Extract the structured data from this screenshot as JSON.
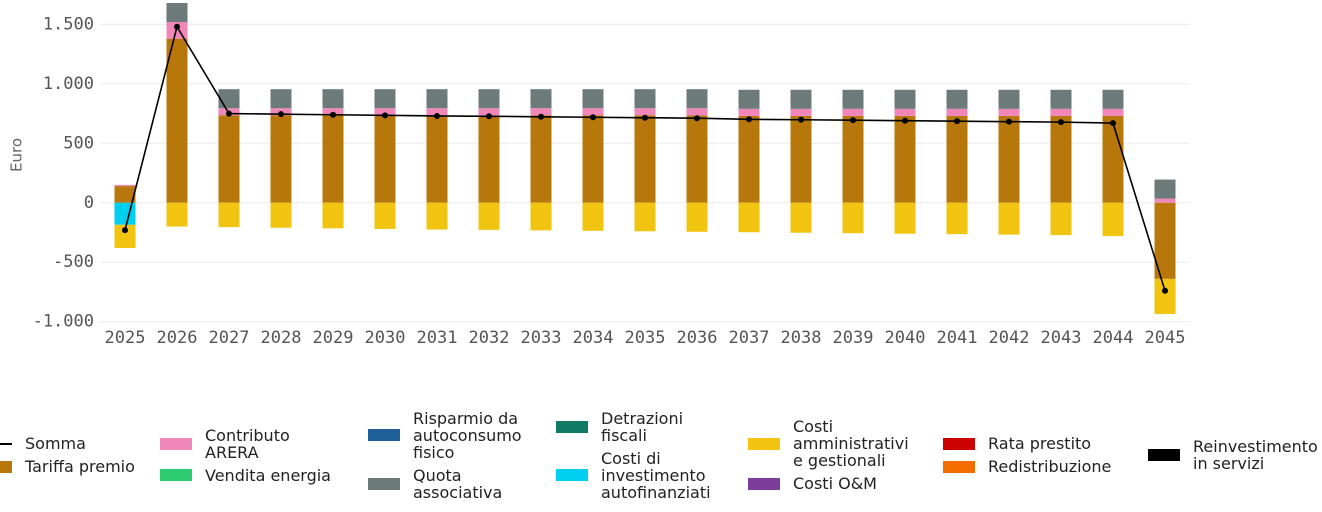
{
  "chart_data": {
    "type": "bar",
    "stacked": true,
    "ylabel": "Euro",
    "categories": [
      "2025",
      "2026",
      "2027",
      "2028",
      "2029",
      "2030",
      "2031",
      "2032",
      "2033",
      "2034",
      "2035",
      "2036",
      "2037",
      "2038",
      "2039",
      "2040",
      "2041",
      "2042",
      "2043",
      "2044",
      "2045"
    ],
    "ylim": [
      -1070,
      1705
    ],
    "yticks": [
      {
        "value": -1000,
        "label": "-1.000"
      },
      -500,
      0,
      500,
      {
        "value": 1000,
        "label": "1.000"
      },
      {
        "value": 1500,
        "label": "1.500"
      }
    ],
    "grid": true,
    "series": [
      {
        "name": "Somma",
        "type": "line",
        "color": "#000000",
        "values": [
          -230,
          1480,
          750,
          745,
          740,
          735,
          730,
          727,
          723,
          719,
          715,
          711,
          702,
          698,
          694,
          690,
          686,
          682,
          678,
          670,
          -740
        ]
      },
      {
        "name": "Tariffa premio",
        "color": "#b8770b",
        "values": [
          140,
          1380,
          735,
          735,
          735,
          735,
          735,
          735,
          735,
          735,
          735,
          735,
          730,
          730,
          730,
          730,
          730,
          730,
          730,
          730,
          -640
        ]
      },
      {
        "name": "Contributo ARERA",
        "color": "#f187b8",
        "values": [
          10,
          140,
          60,
          60,
          60,
          60,
          60,
          60,
          60,
          60,
          60,
          60,
          60,
          60,
          60,
          60,
          60,
          60,
          60,
          60,
          35
        ]
      },
      {
        "name": "Vendita energia",
        "color": "#2ecc71",
        "values": [
          0,
          0,
          0,
          0,
          0,
          0,
          0,
          0,
          0,
          0,
          0,
          0,
          0,
          0,
          0,
          0,
          0,
          0,
          0,
          0,
          0
        ]
      },
      {
        "name": "Risparmio da autoconsumo fisico",
        "color": "#1f5f99",
        "values": [
          0,
          0,
          0,
          0,
          0,
          0,
          0,
          0,
          0,
          0,
          0,
          0,
          0,
          0,
          0,
          0,
          0,
          0,
          0,
          0,
          0
        ]
      },
      {
        "name": "Quota associativa",
        "color": "#6c7a7a",
        "values": [
          0,
          160,
          160,
          160,
          160,
          160,
          160,
          160,
          160,
          160,
          160,
          160,
          160,
          160,
          160,
          160,
          160,
          160,
          160,
          160,
          160
        ]
      },
      {
        "name": "Detrazioni fiscali",
        "color": "#117a65",
        "values": [
          0,
          0,
          0,
          0,
          0,
          0,
          0,
          0,
          0,
          0,
          0,
          0,
          0,
          0,
          0,
          0,
          0,
          0,
          0,
          0,
          0
        ]
      },
      {
        "name": "Costi di investimento autofinanziati",
        "color": "#00cfef",
        "values": [
          -185,
          0,
          0,
          0,
          0,
          0,
          0,
          0,
          0,
          0,
          0,
          0,
          0,
          0,
          0,
          0,
          0,
          0,
          0,
          0,
          0
        ]
      },
      {
        "name": "Costi amministrativi e gestionali",
        "color": "#f1c40f",
        "values": [
          -195,
          -200,
          -205,
          -210,
          -215,
          -220,
          -225,
          -228,
          -232,
          -236,
          -240,
          -244,
          -248,
          -252,
          -256,
          -260,
          -264,
          -268,
          -272,
          -280,
          -295
        ]
      },
      {
        "name": "Costi O&M",
        "color": "#7d3c98",
        "values": [
          0,
          0,
          0,
          0,
          0,
          0,
          0,
          0,
          0,
          0,
          0,
          0,
          0,
          0,
          0,
          0,
          0,
          0,
          0,
          0,
          0
        ]
      },
      {
        "name": "Rata prestito",
        "color": "#cc0000",
        "values": [
          0,
          0,
          0,
          0,
          0,
          0,
          0,
          0,
          0,
          0,
          0,
          0,
          0,
          0,
          0,
          0,
          0,
          0,
          0,
          0,
          0
        ]
      },
      {
        "name": "Redistribuzione",
        "color": "#f36c00",
        "values": [
          0,
          0,
          0,
          0,
          0,
          0,
          0,
          0,
          0,
          0,
          0,
          0,
          0,
          0,
          0,
          0,
          0,
          0,
          0,
          0,
          0
        ]
      },
      {
        "name": "Reinvestimento in servizi",
        "color": "#000000",
        "values": [
          0,
          0,
          0,
          0,
          0,
          0,
          0,
          0,
          0,
          0,
          0,
          0,
          0,
          0,
          0,
          0,
          0,
          0,
          0,
          0,
          0
        ]
      }
    ]
  }
}
